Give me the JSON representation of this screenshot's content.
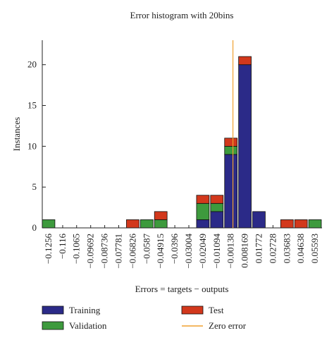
{
  "chart_data": {
    "type": "stacked_histogram",
    "title": "Error histogram with 20bins",
    "x_label": "Errors = targets − outputs",
    "y_label": "Instances",
    "xlim": [
      -0.1299,
      0.0607
    ],
    "ylim": [
      0,
      23
    ],
    "yticks": [
      0,
      5,
      10,
      15,
      20
    ],
    "xticks": [
      {
        "value": -0.1256,
        "label": "−0.1256"
      },
      {
        "value": -0.116,
        "label": "−0.116"
      },
      {
        "value": -0.1065,
        "label": "−0.1065"
      },
      {
        "value": -0.09692,
        "label": "−0.09692"
      },
      {
        "value": -0.08736,
        "label": "−0.08736"
      },
      {
        "value": -0.07781,
        "label": "−0.07781"
      },
      {
        "value": -0.06826,
        "label": "−0.06826"
      },
      {
        "value": -0.0587,
        "label": "−0.0587"
      },
      {
        "value": -0.04915,
        "label": "−0.04915"
      },
      {
        "value": -0.0396,
        "label": "−0.0396"
      },
      {
        "value": -0.03004,
        "label": "−0.03004"
      },
      {
        "value": -0.02049,
        "label": "−0.02049"
      },
      {
        "value": -0.01094,
        "label": "−0.01094"
      },
      {
        "value": -0.00138,
        "label": "−0.00138"
      },
      0.008169,
      0.01772,
      0.02728,
      0.03683,
      0.04638,
      0.05593
    ],
    "series": [
      {
        "name": "Training",
        "color": "#2b2a88",
        "values": [
          0,
          0,
          0,
          0,
          0,
          0,
          0,
          0,
          0,
          0,
          0,
          1,
          2,
          9,
          20,
          2,
          0,
          0,
          0,
          0
        ]
      },
      {
        "name": "Validation",
        "color": "#3d9a3d",
        "values": [
          1,
          0,
          0,
          0,
          0,
          0,
          0,
          1,
          1,
          0,
          0,
          2,
          1,
          1,
          0,
          0,
          0,
          0,
          0,
          1
        ]
      },
      {
        "name": "Test",
        "color": "#d2381c",
        "values": [
          0,
          0,
          0,
          0,
          0,
          0,
          1,
          0,
          1,
          0,
          0,
          1,
          1,
          1,
          1,
          0,
          0,
          1,
          1,
          0
        ]
      }
    ],
    "reference_line": {
      "name": "Zero error",
      "x": 0,
      "color": "#f0a030"
    }
  }
}
